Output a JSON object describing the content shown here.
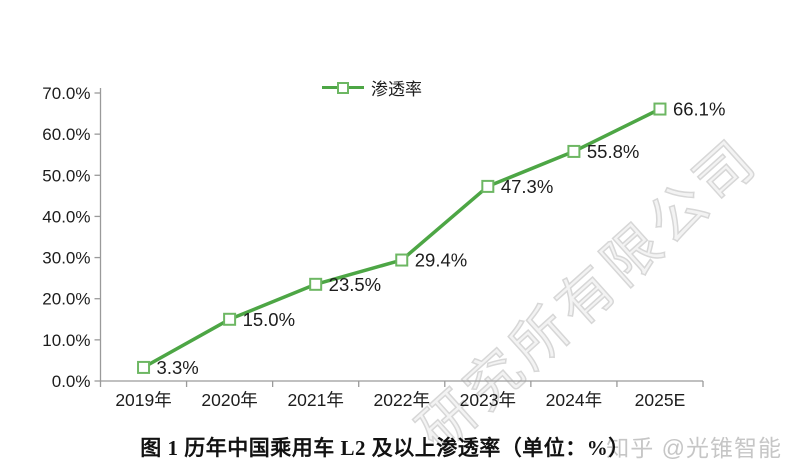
{
  "chart_data": {
    "type": "line",
    "categories": [
      "2019年",
      "2020年",
      "2021年",
      "2022年",
      "2023年",
      "2024年",
      "2025E"
    ],
    "series": [
      {
        "name": "渗透率",
        "values": [
          3.3,
          15.0,
          23.5,
          29.4,
          47.3,
          55.8,
          66.1
        ]
      }
    ],
    "data_labels": [
      "3.3%",
      "15.0%",
      "23.5%",
      "29.4%",
      "47.3%",
      "55.8%",
      "66.1%"
    ],
    "y_tick_labels": [
      "70.0%",
      "60.0%",
      "50.0%",
      "40.0%",
      "30.0%",
      "20.0%",
      "10.0%",
      "0.0%"
    ],
    "ylim": [
      0,
      70
    ],
    "y_tick_step": 10,
    "grid": false,
    "legend_position": "top-center",
    "marker": "hollow-square"
  },
  "caption": "图 1 历年中国乘用车 L2 及以上渗透率（单位：%）",
  "watermarks": {
    "diagonal": "研究所有限公司",
    "credit": "知乎 @光锥智能"
  },
  "colors": {
    "line_green": "#4da645",
    "marker_green": "#6db763",
    "axis_gray": "#9a9a9a",
    "label_black": "#1d1d1d",
    "watermark_gray": "#c6c6c6",
    "diagonal_watermark_gray": "#d7d7d7"
  }
}
